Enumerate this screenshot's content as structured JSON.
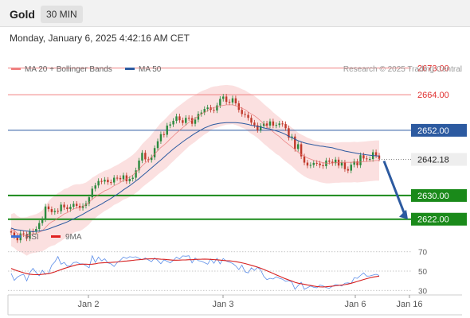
{
  "header": {
    "title": "Gold",
    "interval": "30 MIN"
  },
  "datetime": "Monday, January 6, 2025 4:42:16 AM CET",
  "legend": {
    "items": [
      {
        "label": "MA 20 + Bollinger Bands",
        "color": "#f08080"
      },
      {
        "label": "MA 50",
        "color": "#2c5aa0"
      }
    ],
    "source": "Research © 2025 Trading Central"
  },
  "colors": {
    "up": "#2b8a3e",
    "down": "#c0392b",
    "resistance": "#f08080",
    "ma50": "#2c5aa0",
    "support": "#1a8a1a",
    "arrow": "#2c5aa0"
  },
  "chart_data": [
    {
      "type": "candlestick",
      "x_labels": [
        "Jan 2",
        "Jan 3",
        "Jan 6",
        "Jan 16"
      ],
      "ylim": [
        2612,
        2678
      ],
      "current_price": 2642.18,
      "levels": [
        {
          "value": 2673.0,
          "label": "2673.00",
          "kind": "resistance"
        },
        {
          "value": 2664.0,
          "label": "2664.00",
          "kind": "resistance"
        },
        {
          "value": 2652.0,
          "label": "2652.00",
          "kind": "pivot"
        },
        {
          "value": 2630.0,
          "label": "2630.00",
          "kind": "support"
        },
        {
          "value": 2622.0,
          "label": "2622.00",
          "kind": "support"
        }
      ],
      "price_label": "2642.18",
      "close": [
        2617.5,
        2616.2,
        2614.9,
        2617.2,
        2616.9,
        2615.5,
        2617.9,
        2617.8,
        2618.7,
        2620.7,
        2622.0,
        2626.3,
        2625.4,
        2624.4,
        2624.8,
        2624.7,
        2626.9,
        2626.0,
        2625.4,
        2626.2,
        2627.2,
        2626.5,
        2625.8,
        2626.5,
        2627.3,
        2629.4,
        2632.3,
        2633.4,
        2634.9,
        2634.7,
        2635.3,
        2634.5,
        2634.4,
        2636.0,
        2635.9,
        2635.5,
        2636.8,
        2634.8,
        2635.6,
        2636.0,
        2638.5,
        2641.8,
        2644.4,
        2642.2,
        2642.0,
        2642.9,
        2646.0,
        2648.3,
        2650.7,
        2650.5,
        2653.6,
        2654.0,
        2655.2,
        2656.7,
        2655.4,
        2654.5,
        2656.2,
        2656.1,
        2654.2,
        2655.6,
        2657.5,
        2658.0,
        2659.2,
        2659.7,
        2658.9,
        2658.7,
        2660.4,
        2662.6,
        2663.4,
        2661.6,
        2661.4,
        2662.8,
        2661.1,
        2658.9,
        2657.5,
        2657.2,
        2656.2,
        2654.6,
        2653.7,
        2652.1,
        2653.5,
        2654.3,
        2653.6,
        2655.0,
        2653.6,
        2653.8,
        2654.3,
        2654.1,
        2652.7,
        2649.5,
        2649.9,
        2645.7,
        2647.3,
        2643.2,
        2641.1,
        2640.1,
        2640.3,
        2641.0,
        2640.8,
        2640.2,
        2639.9,
        2641.8,
        2641.4,
        2640.9,
        2642.1,
        2640.1,
        2641.1,
        2638.9,
        2638.4,
        2640.4,
        2641.5,
        2640.2,
        2643.6,
        2642.5,
        2642.3,
        2642.3,
        2644.6,
        2643.5,
        2642.4
      ],
      "moving_averages": [
        {
          "name": "MA 20",
          "values": [
            2618.3,
            2618.2,
            2617.2,
            2616.8,
            2616.5,
            2616.2,
            2616.7,
            2617.0,
            2617.2,
            2617.6,
            2618.1,
            2619.2,
            2620.3,
            2621.1,
            2621.6,
            2622.4,
            2623.0,
            2623.8,
            2624.2,
            2624.9,
            2625.5,
            2625.8,
            2625.9,
            2626.3,
            2626.9,
            2627.7,
            2628.8,
            2629.5,
            2630.3,
            2630.9,
            2631.6,
            2632.0,
            2632.6,
            2633.3,
            2633.8,
            2634.4,
            2635.1,
            2635.6,
            2636.2,
            2636.9,
            2637.8,
            2638.8,
            2640.0,
            2641.0,
            2641.9,
            2642.9,
            2644.0,
            2645.1,
            2646.2,
            2647.0,
            2648.0,
            2649.1,
            2650.1,
            2651.1,
            2652.0,
            2652.9,
            2653.8,
            2654.7,
            2655.4,
            2656.0,
            2656.8,
            2657.5,
            2658.1,
            2658.6,
            2659.3,
            2659.7,
            2659.9,
            2660.2,
            2660.4,
            2660.6,
            2660.6,
            2660.6,
            2660.3,
            2659.9,
            2659.4,
            2659.0,
            2658.2,
            2657.5,
            2656.9,
            2656.1,
            2655.2,
            2654.2,
            2653.3,
            2652.4,
            2651.5,
            2650.6,
            2649.9,
            2648.9,
            2648.0,
            2647.2,
            2646.4,
            2645.5,
            2644.6,
            2643.9,
            2643.3,
            2642.7,
            2642.3,
            2641.9,
            2641.6,
            2641.3,
            2641.1,
            2640.9,
            2640.9,
            2641.0,
            2641.1,
            2641.1,
            2641.2,
            2641.2,
            2641.2,
            2641.2,
            2641.3,
            2641.2,
            2641.3,
            2641.4,
            2641.5,
            2641.6,
            2641.7,
            2641.8,
            2641.8
          ]
        },
        {
          "name": "MA 50",
          "values": [
            2619.0,
            2618.6,
            2618.4,
            2618.3,
            2618.1,
            2618.0,
            2617.9,
            2617.8,
            2617.9,
            2618.0,
            2618.2,
            2618.4,
            2618.7,
            2619.1,
            2619.5,
            2619.9,
            2620.3,
            2620.7,
            2621.1,
            2621.6,
            2622.1,
            2622.6,
            2623.1,
            2623.7,
            2624.3,
            2624.9,
            2625.5,
            2626.0,
            2626.6,
            2627.1,
            2627.8,
            2628.4,
            2629.0,
            2629.7,
            2630.4,
            2631.1,
            2631.9,
            2632.6,
            2633.3,
            2634.1,
            2634.9,
            2635.7,
            2636.6,
            2637.5,
            2638.4,
            2639.3,
            2640.2,
            2641.1,
            2642.0,
            2642.9,
            2643.9,
            2644.8,
            2645.7,
            2646.5,
            2647.3,
            2648.1,
            2648.9,
            2649.6,
            2650.3,
            2651.0,
            2651.6,
            2652.2,
            2652.8,
            2653.2,
            2653.7,
            2654.0,
            2654.2,
            2654.4,
            2654.5,
            2654.6,
            2654.6,
            2654.6,
            2654.6,
            2654.5,
            2654.4,
            2654.2,
            2654.0,
            2653.7,
            2653.5,
            2653.3,
            2653.1,
            2652.8,
            2652.6,
            2652.4,
            2652.1,
            2651.8,
            2651.5,
            2651.1,
            2650.6,
            2650.0,
            2649.5,
            2649.0,
            2648.5,
            2648.1,
            2647.8,
            2647.5,
            2647.3,
            2647.1,
            2646.9,
            2646.7,
            2646.6,
            2646.4,
            2646.3,
            2646.1,
            2645.8,
            2645.5,
            2645.3,
            2645.0,
            2644.8,
            2644.6,
            2644.4,
            2644.2,
            2644.0,
            2643.9,
            2643.7,
            2643.6,
            2643.5,
            2643.4,
            2643.3
          ]
        }
      ],
      "bollinger_band": {
        "upper": [
          2623.7,
          2624.1,
          2623.1,
          2622.6,
          2622.6,
          2622.7,
          2623.1,
          2623.4,
          2623.7,
          2624.2,
          2625.0,
          2626.6,
          2628.1,
          2629.2,
          2629.9,
          2630.8,
          2631.4,
          2632.2,
          2632.5,
          2633.1,
          2633.6,
          2633.8,
          2633.8,
          2634.0,
          2634.4,
          2635.1,
          2636.0,
          2636.6,
          2637.3,
          2637.8,
          2638.4,
          2638.7,
          2639.2,
          2639.8,
          2640.3,
          2640.9,
          2641.6,
          2642.2,
          2642.9,
          2643.7,
          2644.7,
          2645.9,
          2647.3,
          2648.4,
          2649.4,
          2650.6,
          2651.9,
          2653.2,
          2654.5,
          2655.4,
          2656.5,
          2657.6,
          2658.6,
          2659.6,
          2660.4,
          2661.2,
          2662.0,
          2662.8,
          2663.4,
          2663.9,
          2664.6,
          2665.2,
          2665.6,
          2666.0,
          2666.5,
          2666.8,
          2666.9,
          2667.1,
          2667.2,
          2667.3,
          2667.2,
          2667.1,
          2666.8,
          2666.4,
          2665.9,
          2665.5,
          2664.8,
          2664.2,
          2663.6,
          2662.8,
          2661.9,
          2660.9,
          2660.0,
          2659.1,
          2658.1,
          2657.2,
          2656.4,
          2655.4,
          2654.5,
          2653.7,
          2652.9,
          2652.1,
          2651.2,
          2650.6,
          2650.1,
          2649.5,
          2649.1,
          2648.6,
          2648.3,
          2648.1,
          2647.9,
          2647.7,
          2647.7,
          2647.8,
          2647.9,
          2647.9,
          2648.0,
          2648.0,
          2648.0,
          2648.0,
          2648.1,
          2648.0,
          2648.1,
          2648.2,
          2648.3,
          2648.4,
          2648.5,
          2648.6,
          2648.6
        ],
        "lower": [
          2612.9,
          2612.3,
          2611.3,
          2611.0,
          2610.4,
          2609.7,
          2610.3,
          2610.6,
          2610.7,
          2611.0,
          2611.2,
          2611.8,
          2612.5,
          2613.0,
          2613.3,
          2614.0,
          2614.6,
          2615.4,
          2615.9,
          2616.7,
          2617.4,
          2617.8,
          2618.0,
          2618.6,
          2619.4,
          2620.3,
          2621.6,
          2622.4,
          2623.3,
          2624.0,
          2624.8,
          2625.3,
          2626.0,
          2626.8,
          2627.3,
          2627.9,
          2628.6,
          2629.0,
          2629.5,
          2630.1,
          2630.9,
          2631.7,
          2632.7,
          2633.6,
          2634.4,
          2635.2,
          2636.1,
          2637.0,
          2637.9,
          2638.6,
          2639.5,
          2640.6,
          2641.6,
          2642.6,
          2643.6,
          2644.6,
          2645.6,
          2646.6,
          2647.4,
          2648.1,
          2649.0,
          2649.8,
          2650.6,
          2651.2,
          2652.1,
          2652.6,
          2652.9,
          2653.3,
          2653.6,
          2653.9,
          2654.0,
          2654.1,
          2653.8,
          2653.4,
          2652.9,
          2652.5,
          2651.6,
          2650.8,
          2650.2,
          2649.4,
          2648.5,
          2647.5,
          2646.6,
          2645.7,
          2644.9,
          2644.0,
          2643.4,
          2642.4,
          2641.5,
          2640.7,
          2639.9,
          2638.9,
          2638.0,
          2637.2,
          2636.5,
          2635.9,
          2635.5,
          2635.2,
          2634.9,
          2634.5,
          2634.3,
          2634.1,
          2634.1,
          2634.2,
          2634.3,
          2634.3,
          2634.4,
          2634.4,
          2634.4,
          2634.4,
          2634.5,
          2634.4,
          2634.5,
          2634.6,
          2634.7,
          2634.8,
          2634.9,
          2635.0,
          2635.0
        ]
      },
      "projection": {
        "from_value": 2642.18,
        "to_value": 2622.0
      }
    },
    {
      "type": "line",
      "legend": [
        {
          "label": "RSI",
          "color": "#3b6fd8"
        },
        {
          "label": "9MA",
          "color": "#e02020"
        }
      ],
      "ylim": [
        22,
        78
      ],
      "ticks": [
        70,
        50,
        30
      ],
      "tick_labels": [
        "70",
        "50",
        "30"
      ],
      "series": [
        {
          "name": "RSI",
          "values": [
            47.6,
            40.4,
            43.7,
            45.7,
            46.6,
            39.8,
            48.4,
            52.8,
            48.6,
            45.2,
            50.8,
            46.6,
            47.9,
            56.0,
            59.5,
            65.1,
            57.2,
            59.0,
            55.0,
            55.7,
            58.9,
            59.3,
            57.5,
            57.5,
            55.5,
            53.4,
            65.9,
            59.0,
            64.6,
            60.6,
            62.8,
            58.5,
            57.5,
            54.8,
            58.8,
            61.1,
            64.6,
            63.2,
            64.9,
            64.4,
            64.8,
            63.3,
            61.7,
            63.6,
            61.5,
            59.8,
            63.7,
            61.0,
            57.6,
            61.6,
            60.2,
            58.6,
            61.1,
            64.5,
            62.6,
            65.7,
            65.4,
            65.9,
            58.5,
            63.6,
            60.8,
            60.3,
            58.7,
            57.1,
            62.5,
            58.1,
            63.3,
            57.5,
            63.0,
            60.4,
            59.2,
            57.9,
            55.4,
            51.6,
            56.3,
            49.3,
            48.1,
            53.4,
            50.7,
            53.9,
            51.2,
            44.5,
            41.1,
            42.6,
            41.8,
            44.1,
            42.6,
            41.6,
            39.5,
            40.1,
            38.6,
            31.1,
            34.9,
            38.4,
            31.1,
            32.8,
            34.6,
            33.2,
            32.8,
            35.5,
            34.7,
            32.9,
            32.2,
            34.2,
            36.1,
            35.6,
            34.5,
            37.5,
            37.8,
            37.2,
            43.1,
            42.5,
            45.5,
            48.1,
            44.8,
            45.0,
            45.9,
            46.7,
            45.5
          ]
        },
        {
          "name": "9MA",
          "values": [
            52.8,
            51.4,
            50.3,
            49.3,
            48.3,
            47.4,
            46.8,
            46.5,
            46.3,
            46.3,
            46.6,
            47.0,
            47.4,
            48.2,
            49.2,
            50.4,
            51.5,
            52.7,
            53.7,
            54.7,
            55.6,
            56.5,
            57.0,
            57.2,
            57.2,
            57.0,
            57.2,
            57.6,
            58.2,
            58.5,
            58.7,
            58.8,
            59.0,
            59.2,
            59.5,
            59.9,
            60.2,
            60.5,
            60.8,
            61.1,
            61.5,
            61.8,
            62.1,
            62.5,
            62.6,
            62.7,
            62.7,
            62.6,
            62.3,
            62.2,
            61.9,
            61.6,
            61.3,
            61.3,
            61.4,
            61.5,
            61.6,
            61.8,
            61.8,
            62.1,
            62.2,
            62.3,
            62.4,
            62.3,
            62.1,
            61.9,
            61.7,
            61.4,
            61.0,
            60.8,
            60.6,
            60.3,
            59.8,
            59.2,
            58.6,
            57.8,
            56.9,
            56.0,
            55.1,
            54.1,
            53.0,
            51.7,
            50.3,
            48.9,
            47.5,
            46.1,
            44.7,
            43.3,
            42.0,
            40.8,
            39.7,
            38.4,
            37.5,
            36.9,
            36.3,
            35.7,
            35.1,
            34.5,
            34.0,
            33.7,
            33.6,
            33.8,
            34.1,
            34.4,
            34.8,
            35.2,
            35.5,
            36.0,
            36.6,
            37.4,
            38.3,
            39.3,
            40.3,
            41.3,
            42.2,
            43.0,
            43.7,
            44.3,
            44.8
          ]
        }
      ]
    }
  ]
}
